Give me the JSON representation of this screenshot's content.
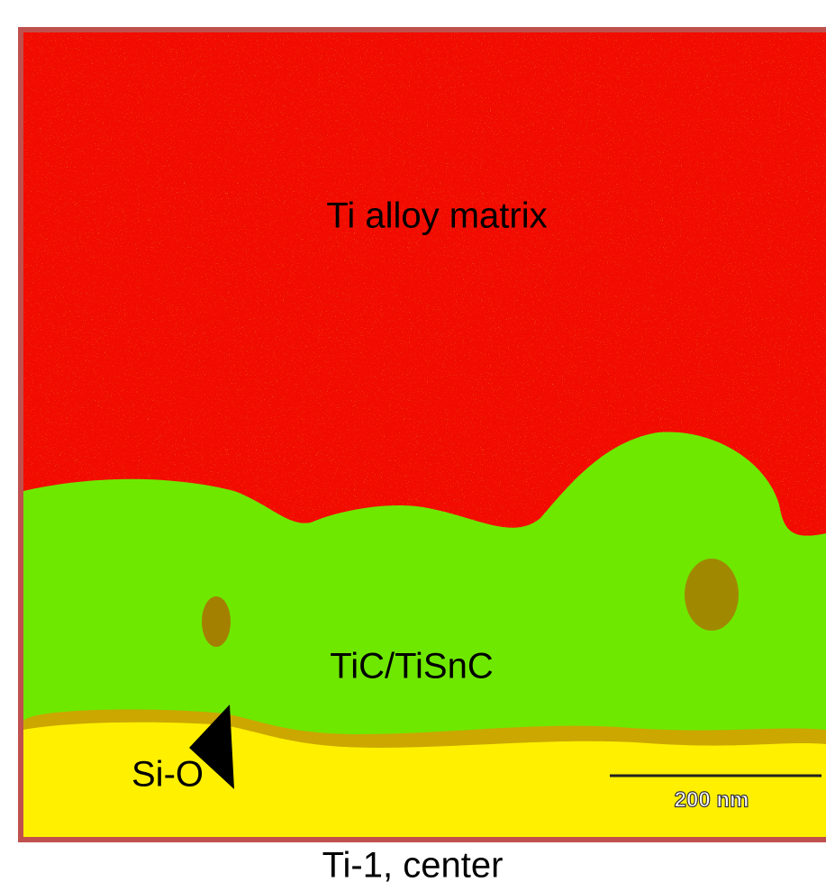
{
  "labels": {
    "matrix": "Ti alloy matrix",
    "carbide": "TiC/TiSnC",
    "oxide": "Si-O"
  },
  "scale_bar": "200 nm",
  "caption": "Ti-1, center"
}
